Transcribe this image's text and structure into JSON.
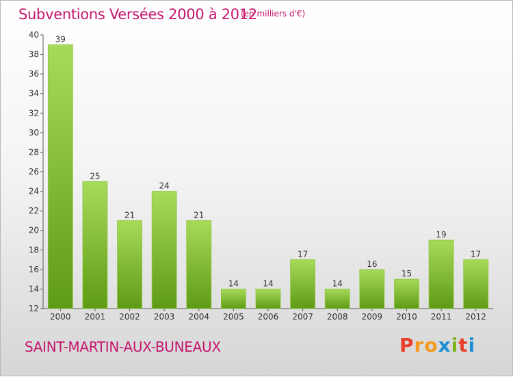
{
  "title": "Subventions Versées 2000 à 2012",
  "subtitle": "(en milliers d'€)",
  "commune": "SAINT-MARTIN-AUX-BUNEAUX",
  "logo": {
    "letters": [
      "P",
      "r",
      "o",
      "x",
      "i",
      "t",
      "i"
    ],
    "colors": [
      "#e8402a",
      "#f39a1e",
      "#f39a1e",
      "#1b8fd6",
      "#7ab51d",
      "#e8402a",
      "#1b8fd6"
    ]
  },
  "colors": {
    "bar_light": "#a8da5a",
    "bar_dark": "#5e9b14",
    "accent": "#c4156d"
  },
  "chart_data": {
    "type": "bar",
    "categories": [
      "2000",
      "2001",
      "2002",
      "2003",
      "2004",
      "2005",
      "2006",
      "2007",
      "2008",
      "2009",
      "2010",
      "2011",
      "2012"
    ],
    "values": [
      39,
      25,
      21,
      24,
      21,
      14,
      14,
      17,
      14,
      16,
      15,
      19,
      17
    ],
    "ylim": [
      12,
      40
    ],
    "yticks": [
      12,
      14,
      16,
      18,
      20,
      22,
      24,
      26,
      28,
      30,
      32,
      34,
      36,
      38,
      40
    ],
    "grid": false,
    "xlabel": "",
    "ylabel": ""
  }
}
